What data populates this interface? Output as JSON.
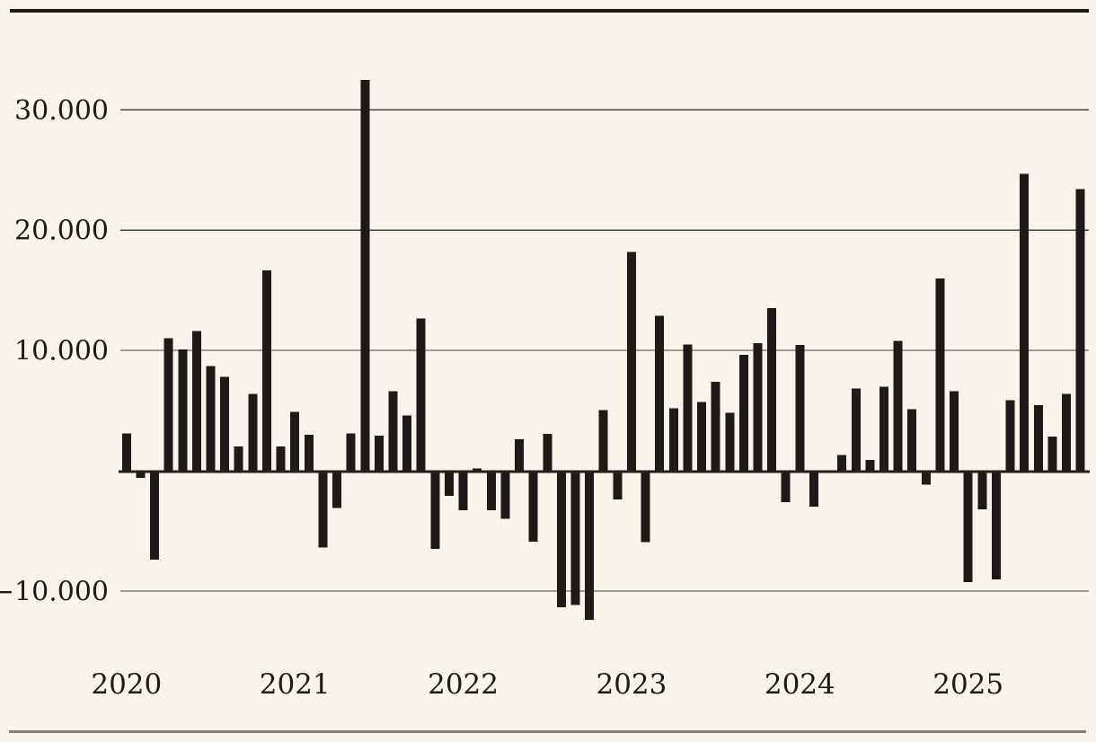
{
  "page": {
    "background_color": "#f8f4ec",
    "top_rule_color": "#1c1b19",
    "bottom_rule_color": "#85817a"
  },
  "chart_data": {
    "type": "bar",
    "title": "",
    "xlabel": "",
    "ylabel": "",
    "x_unit": "month",
    "period_start": "2020-01",
    "period_end": "2025-09",
    "grid": true,
    "legend": "none",
    "ylim": [
      -13500,
      33500
    ],
    "bar_color": "#1c1b18",
    "grid_color": "#45433e",
    "axis_color": "#21201d",
    "text_color": "#1c1b18",
    "yticks": [
      {
        "value": 30000,
        "label": "30.000"
      },
      {
        "value": 20000,
        "label": "20.000"
      },
      {
        "value": 10000,
        "label": "10.000"
      },
      {
        "value": -10000,
        "label": "−10.000"
      }
    ],
    "xticks": [
      "2020",
      "2021",
      "2022",
      "2023",
      "2024",
      "2025"
    ],
    "values_by_year": {
      "2020": [
        3100,
        -600,
        -7400,
        11000,
        10100,
        11600,
        8700,
        7800,
        2000,
        6400,
        16650,
        2000
      ],
      "2021": [
        4900,
        3000,
        -6400,
        -3100,
        3100,
        32500,
        2900,
        6600,
        4600,
        12650,
        -6500,
        -2100
      ],
      "2022": [
        -3300,
        200,
        -3300,
        -4000,
        2600,
        -5900,
        3050,
        -11350,
        -11150,
        -12400,
        5050,
        -2400
      ],
      "2023": [
        18200,
        -5950,
        12900,
        5200,
        10500,
        5700,
        7400,
        4800,
        9650,
        10600,
        13500,
        -2600
      ],
      "2024": [
        10450,
        -3000,
        -200,
        1300,
        6850,
        900,
        7000,
        10800,
        5100,
        -1150,
        16000,
        6600
      ],
      "2025": [
        -9250,
        -3200,
        -9050,
        5850,
        24700,
        5450,
        2850,
        6400,
        23400
      ]
    }
  }
}
